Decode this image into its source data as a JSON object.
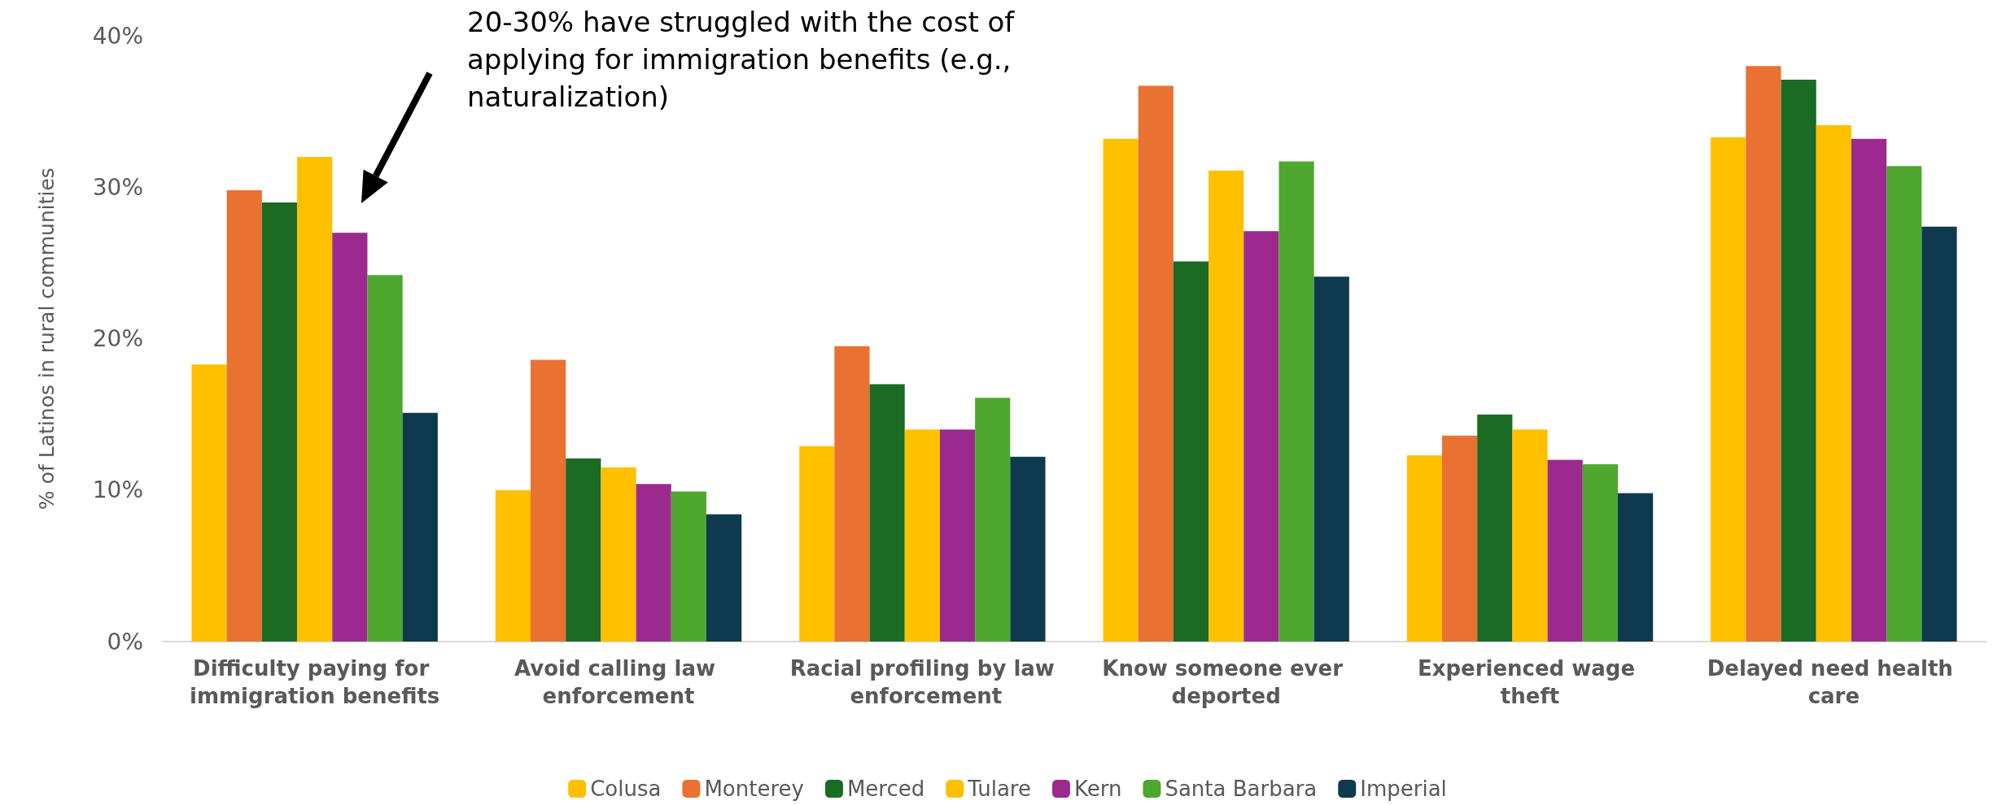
{
  "chart_data": {
    "type": "bar",
    "ylabel": "% of Latinos in rural communities",
    "categories": [
      "Difficulty paying for immigration benefits",
      "Avoid calling law enforcement",
      "Racial profiling by law enforcement",
      "Know someone ever deported",
      "Experienced wage theft",
      "Delayed need health care"
    ],
    "series": [
      {
        "name": "Colusa",
        "color": "#ffc000",
        "values": [
          18.3,
          10.0,
          12.9,
          33.2,
          12.3,
          33.3
        ]
      },
      {
        "name": "Monterey",
        "color": "#e97132",
        "values": [
          29.8,
          18.6,
          19.5,
          36.7,
          13.6,
          38.0
        ]
      },
      {
        "name": "Merced",
        "color": "#1b6b24",
        "values": [
          29.0,
          12.1,
          17.0,
          25.1,
          15.0,
          37.1
        ]
      },
      {
        "name": "Tulare",
        "color": "#ffc000",
        "values": [
          32.0,
          11.5,
          14.0,
          31.1,
          14.0,
          34.1
        ]
      },
      {
        "name": "Kern",
        "color": "#9c2a8e",
        "values": [
          27.0,
          10.4,
          14.0,
          27.1,
          12.0,
          33.2
        ]
      },
      {
        "name": "Santa Barbara",
        "color": "#4ea72e",
        "values": [
          24.2,
          9.9,
          16.1,
          31.7,
          11.7,
          31.4
        ]
      },
      {
        "name": "Imperial",
        "color": "#0e3a4f",
        "values": [
          15.1,
          8.4,
          12.2,
          24.1,
          9.8,
          27.4
        ]
      }
    ],
    "ylim": [
      0,
      40
    ],
    "yticks": [
      {
        "value": 0,
        "label": "0%"
      },
      {
        "value": 10,
        "label": "10%"
      },
      {
        "value": 20,
        "label": "20%"
      },
      {
        "value": 30,
        "label": "30%"
      },
      {
        "value": 40,
        "label": "40%"
      }
    ],
    "annotations": [
      "20-30% have struggled with the cost of applying for immigration benefits (e.g., naturalization)"
    ],
    "grid": false,
    "legend": "bottom"
  }
}
